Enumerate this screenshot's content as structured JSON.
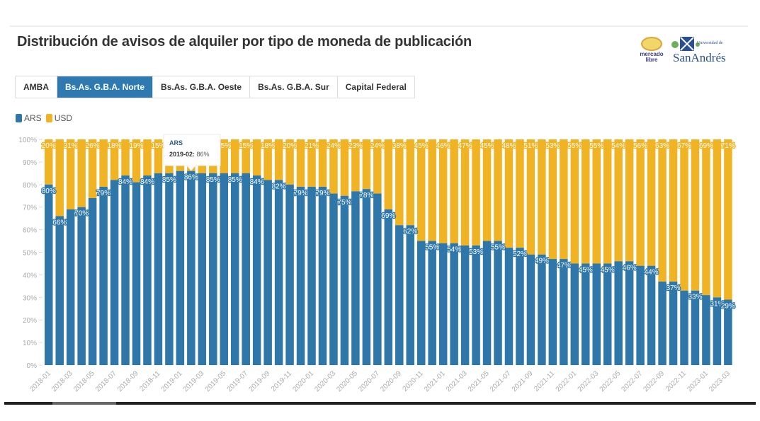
{
  "page": {
    "title": "Distribución de avisos de alquiler por tipo de moneda de publicación",
    "logos": {
      "mercadolibre": {
        "line1": "mercado",
        "line2": "libre"
      },
      "sanandres": {
        "small": "Universidad de",
        "name": "SanAndrés"
      }
    },
    "tabs": [
      {
        "label": "AMBA",
        "active": false
      },
      {
        "label": "Bs.As. G.B.A. Norte",
        "active": true
      },
      {
        "label": "Bs.As. G.B.A. Oeste",
        "active": false
      },
      {
        "label": "Bs.As. G.B.A. Sur",
        "active": false
      },
      {
        "label": "Capital Federal",
        "active": false
      }
    ],
    "legend": [
      {
        "label": "ARS",
        "color": "#2e77a8"
      },
      {
        "label": "USD",
        "color": "#f0b323"
      }
    ],
    "tooltip": {
      "series": "ARS",
      "month": "2019-02",
      "value_text": "86%"
    }
  },
  "chart_data": {
    "type": "bar",
    "stacked": true,
    "normalized": true,
    "title": "Distribución de avisos de alquiler por tipo de moneda de publicación",
    "xlabel": "",
    "ylabel": "",
    "ylim": [
      0,
      100
    ],
    "yticks": [
      "0%",
      "10%",
      "20%",
      "30%",
      "40%",
      "50%",
      "60%",
      "70%",
      "80%",
      "90%",
      "100%"
    ],
    "grid": false,
    "legend_position": "top-left",
    "categories": [
      "2018-01",
      "2018-02",
      "2018-03",
      "2018-04",
      "2018-05",
      "2018-06",
      "2018-07",
      "2018-08",
      "2018-09",
      "2018-10",
      "2018-11",
      "2018-12",
      "2019-01",
      "2019-02",
      "2019-03",
      "2019-04",
      "2019-05",
      "2019-06",
      "2019-07",
      "2019-08",
      "2019-09",
      "2019-10",
      "2019-11",
      "2019-12",
      "2020-01",
      "2020-02",
      "2020-03",
      "2020-04",
      "2020-05",
      "2020-06",
      "2020-07",
      "2020-08",
      "2020-09",
      "2020-10",
      "2020-11",
      "2020-12",
      "2021-01",
      "2021-02",
      "2021-03",
      "2021-04",
      "2021-05",
      "2021-06",
      "2021-07",
      "2021-08",
      "2021-09",
      "2021-10",
      "2021-11",
      "2021-12",
      "2022-01",
      "2022-02",
      "2022-03",
      "2022-04",
      "2022-05",
      "2022-06",
      "2022-07",
      "2022-08",
      "2022-09",
      "2022-10",
      "2022-11",
      "2022-12",
      "2023-01",
      "2023-02",
      "2023-03"
    ],
    "xtick_labels": [
      "2018-01",
      "2018-03",
      "2018-05",
      "2018-07",
      "2018-09",
      "2018-11",
      "2019-01",
      "2019-03",
      "2019-05",
      "2019-07",
      "2019-09",
      "2019-11",
      "2020-01",
      "2020-03",
      "2020-05",
      "2020-07",
      "2020-09",
      "2020-11",
      "2021-01",
      "2021-03",
      "2021-05",
      "2021-07",
      "2021-09",
      "2021-11",
      "2022-01",
      "2022-03",
      "2022-05",
      "2022-07",
      "2022-09",
      "2022-11",
      "2023-01",
      "2023-03"
    ],
    "series": [
      {
        "name": "ARS",
        "color": "#2e77a8",
        "values": [
          80,
          66,
          69,
          70,
          74,
          79,
          82,
          84,
          81,
          84,
          85,
          85,
          86,
          86,
          85,
          85,
          85,
          85,
          85,
          84,
          82,
          82,
          80,
          79,
          79,
          79,
          76,
          75,
          77,
          78,
          76,
          69,
          62,
          62,
          55,
          55,
          54,
          54,
          53,
          53,
          55,
          55,
          52,
          52,
          49,
          49,
          47,
          47,
          45,
          45,
          45,
          45,
          46,
          46,
          44,
          44,
          37,
          37,
          33,
          33,
          31,
          30,
          29
        ]
      },
      {
        "name": "USD",
        "color": "#f0b323",
        "values": [
          20,
          34,
          31,
          30,
          26,
          21,
          18,
          16,
          19,
          16,
          15,
          15,
          14,
          14,
          15,
          15,
          15,
          15,
          15,
          16,
          18,
          18,
          20,
          21,
          21,
          21,
          24,
          25,
          23,
          22,
          24,
          31,
          38,
          38,
          45,
          45,
          46,
          46,
          47,
          47,
          45,
          45,
          48,
          48,
          51,
          51,
          53,
          53,
          55,
          55,
          55,
          55,
          54,
          54,
          56,
          56,
          63,
          63,
          67,
          67,
          69,
          70,
          71
        ]
      }
    ],
    "data_labels": {
      "ARS": [
        {
          "category": "2018-01",
          "text": "80%"
        },
        {
          "category": "2018-02",
          "text": "66%"
        },
        {
          "category": "2018-04",
          "text": "70%"
        },
        {
          "category": "2018-06",
          "text": "79%"
        },
        {
          "category": "2018-08",
          "text": "84%"
        },
        {
          "category": "2018-10",
          "text": "84%"
        },
        {
          "category": "2018-12",
          "text": "85%"
        },
        {
          "category": "2019-02",
          "text": "86%"
        },
        {
          "category": "2019-04",
          "text": "85%"
        },
        {
          "category": "2019-06",
          "text": "85%"
        },
        {
          "category": "2019-08",
          "text": "84%"
        },
        {
          "category": "2019-10",
          "text": "82%"
        },
        {
          "category": "2019-12",
          "text": "79%"
        },
        {
          "category": "2020-02",
          "text": "79%"
        },
        {
          "category": "2020-04",
          "text": "75%"
        },
        {
          "category": "2020-06",
          "text": "78%"
        },
        {
          "category": "2020-08",
          "text": "69%"
        },
        {
          "category": "2020-10",
          "text": "62%"
        },
        {
          "category": "2020-12",
          "text": "55%"
        },
        {
          "category": "2021-02",
          "text": "54%"
        },
        {
          "category": "2021-04",
          "text": "53%"
        },
        {
          "category": "2021-06",
          "text": "55%"
        },
        {
          "category": "2021-08",
          "text": "52%"
        },
        {
          "category": "2021-10",
          "text": "49%"
        },
        {
          "category": "2021-12",
          "text": "47%"
        },
        {
          "category": "2022-02",
          "text": "45%"
        },
        {
          "category": "2022-04",
          "text": "45%"
        },
        {
          "category": "2022-06",
          "text": "46%"
        },
        {
          "category": "2022-08",
          "text": "44%"
        },
        {
          "category": "2022-10",
          "text": "37%"
        },
        {
          "category": "2022-12",
          "text": "33%"
        },
        {
          "category": "2023-02",
          "text": "31%"
        },
        {
          "category": "2023-03",
          "text": "29%"
        }
      ],
      "USD": [
        {
          "category": "2018-01",
          "text": "20%"
        },
        {
          "category": "2018-03",
          "text": "31%"
        },
        {
          "category": "2018-05",
          "text": "26%"
        },
        {
          "category": "2018-07",
          "text": "18%"
        },
        {
          "category": "2018-09",
          "text": "19%"
        },
        {
          "category": "2018-11",
          "text": "15%"
        },
        {
          "category": "2019-05",
          "text": "15%"
        },
        {
          "category": "2019-07",
          "text": "15%"
        },
        {
          "category": "2019-09",
          "text": "18%"
        },
        {
          "category": "2019-11",
          "text": "20%"
        },
        {
          "category": "2020-01",
          "text": "21%"
        },
        {
          "category": "2020-03",
          "text": "24%"
        },
        {
          "category": "2020-05",
          "text": "23%"
        },
        {
          "category": "2020-07",
          "text": "24%"
        },
        {
          "category": "2020-09",
          "text": "38%"
        },
        {
          "category": "2020-11",
          "text": "45%"
        },
        {
          "category": "2021-01",
          "text": "46%"
        },
        {
          "category": "2021-03",
          "text": "47%"
        },
        {
          "category": "2021-05",
          "text": "45%"
        },
        {
          "category": "2021-07",
          "text": "48%"
        },
        {
          "category": "2021-09",
          "text": "51%"
        },
        {
          "category": "2021-11",
          "text": "53%"
        },
        {
          "category": "2022-01",
          "text": "55%"
        },
        {
          "category": "2022-03",
          "text": "55%"
        },
        {
          "category": "2022-05",
          "text": "54%"
        },
        {
          "category": "2022-07",
          "text": "56%"
        },
        {
          "category": "2022-09",
          "text": "63%"
        },
        {
          "category": "2022-11",
          "text": "67%"
        },
        {
          "category": "2023-01",
          "text": "69%"
        },
        {
          "category": "2023-03",
          "text": "71%"
        }
      ]
    }
  }
}
